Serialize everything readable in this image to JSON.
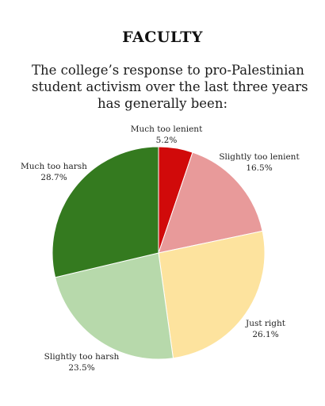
{
  "chart_data": {
    "type": "pie",
    "title": "FACULTY",
    "subtitle_lines": [
      "The college’s response to pro-Palestinian",
      "student activism over the last three years",
      "has generally been:"
    ],
    "slices": [
      {
        "label": "Much too lenient",
        "value": 5.2,
        "value_label": "5.2%",
        "color": "#d10a0a"
      },
      {
        "label": "Slightly too lenient",
        "value": 16.5,
        "value_label": "16.5%",
        "color": "#e89a9a"
      },
      {
        "label": "Just right",
        "value": 26.1,
        "value_label": "26.1%",
        "color": "#fde39e"
      },
      {
        "label": "Slightly too harsh",
        "value": 23.5,
        "value_label": "23.5%",
        "color": "#b7d9ab"
      },
      {
        "label": "Much too harsh",
        "value": 28.7,
        "value_label": "28.7%",
        "color": "#347a1f"
      }
    ],
    "start_angle": "12 o'clock",
    "direction": "clockwise",
    "legend": "none (labels next to slices)"
  }
}
